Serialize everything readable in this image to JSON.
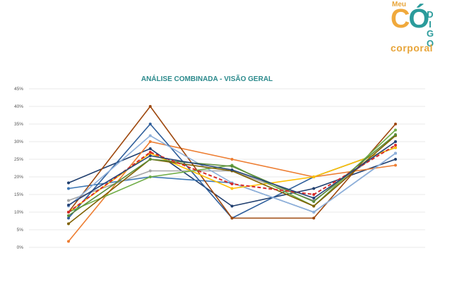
{
  "brand": {
    "top": "Meu",
    "co_c": "C",
    "co_o": "Ó",
    "digo": [
      "D",
      "I",
      "G",
      "O"
    ],
    "bottom": "corporal",
    "colors": {
      "orange": "#f0a93c",
      "teal": "#2b9b9b"
    }
  },
  "chart_data": {
    "type": "line",
    "title": "ANÁLISE COMBINADA - VISÃO GERAL",
    "xlabel": "",
    "ylabel": "",
    "ylim": [
      0,
      45
    ],
    "yticks": [
      "0%",
      "5%",
      "10%",
      "15%",
      "20%",
      "25%",
      "30%",
      "35%",
      "40%",
      "45%"
    ],
    "categories": [
      "",
      "",
      "",
      "",
      ""
    ],
    "grid": true,
    "series": [
      {
        "values": [
          18.3,
          28.0,
          11.7,
          16.7,
          25.0
        ],
        "color": "#1f3e6e",
        "dash": false
      },
      {
        "values": [
          16.7,
          20.0,
          18.3,
          10.0,
          26.7
        ],
        "color": "#3e78b5",
        "dash": false
      },
      {
        "values": [
          13.3,
          21.7,
          21.7,
          13.3,
          30.0
        ],
        "color": "#a6a6a6",
        "dash": false
      },
      {
        "values": [
          1.7,
          30.0,
          25.0,
          20.0,
          23.3
        ],
        "color": "#ed7d31",
        "dash": false
      },
      {
        "values": [
          8.3,
          35.0,
          8.3,
          20.0,
          28.3
        ],
        "color": "#2e5e9b",
        "dash": false
      },
      {
        "values": [
          10.0,
          40.0,
          8.3,
          8.3,
          35.0
        ],
        "color": "#9e480e",
        "dash": false
      },
      {
        "values": [
          11.7,
          31.7,
          18.3,
          10.0,
          26.7
        ],
        "color": "#8fb0da",
        "dash": false
      },
      {
        "values": [
          10.0,
          26.7,
          16.7,
          20.0,
          28.3
        ],
        "color": "#ffc000",
        "dash": false
      },
      {
        "values": [
          10.0,
          20.0,
          23.3,
          11.7,
          33.3
        ],
        "color": "#70ad47",
        "dash": false
      },
      {
        "values": [
          6.7,
          25.0,
          21.7,
          11.7,
          31.7
        ],
        "color": "#7f6000",
        "dash": false
      },
      {
        "values": [
          9.0,
          25.0,
          23.0,
          13.0,
          32.0
        ],
        "color": "#5b8c3a",
        "dash": false
      },
      {
        "values": [
          10.0,
          27.0,
          18.0,
          15.0,
          29.0
        ],
        "color": "#d62b2b",
        "dash": true
      },
      {
        "values": [
          12.0,
          26.0,
          22.0,
          14.0,
          30.0
        ],
        "color": "#264478",
        "dash": false
      }
    ]
  }
}
